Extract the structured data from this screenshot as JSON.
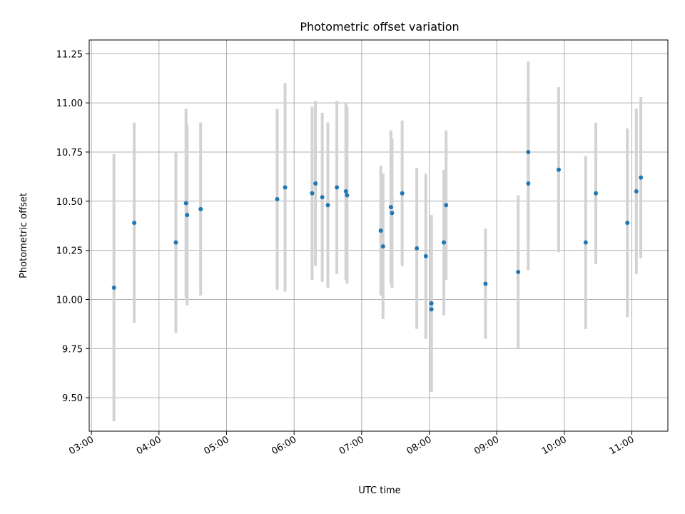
{
  "chart_data": {
    "type": "scatter",
    "title": "Photometric offset variation",
    "xlabel": "UTC time",
    "ylabel": "Photometric offset",
    "x_ticks": [
      "03:00",
      "04:00",
      "05:00",
      "06:00",
      "07:00",
      "08:00",
      "09:00",
      "10:00",
      "11:00"
    ],
    "y_ticks": [
      "9.50",
      "9.75",
      "10.00",
      "10.25",
      "10.50",
      "10.75",
      "11.00",
      "11.25"
    ],
    "xlim": [
      "02:58",
      "11:32"
    ],
    "ylim": [
      9.33,
      11.32
    ],
    "grid": true,
    "point_color": "#1f77b4",
    "errorbar_color": "#d3d3d3",
    "points": [
      {
        "x": "03:20",
        "y": 10.06,
        "err": 0.68
      },
      {
        "x": "03:38",
        "y": 10.39,
        "err": 0.51
      },
      {
        "x": "04:15",
        "y": 10.29,
        "err": 0.46
      },
      {
        "x": "04:24",
        "y": 10.49,
        "err": 0.48
      },
      {
        "x": "04:25",
        "y": 10.43,
        "err": 0.46
      },
      {
        "x": "04:37",
        "y": 10.46,
        "err": 0.44
      },
      {
        "x": "05:45",
        "y": 10.51,
        "err": 0.46
      },
      {
        "x": "05:52",
        "y": 10.57,
        "err": 0.53
      },
      {
        "x": "06:16",
        "y": 10.54,
        "err": 0.44
      },
      {
        "x": "06:19",
        "y": 10.59,
        "err": 0.42
      },
      {
        "x": "06:25",
        "y": 10.52,
        "err": 0.43
      },
      {
        "x": "06:30",
        "y": 10.48,
        "err": 0.42
      },
      {
        "x": "06:38",
        "y": 10.57,
        "err": 0.44
      },
      {
        "x": "06:46",
        "y": 10.55,
        "err": 0.45
      },
      {
        "x": "06:47",
        "y": 10.53,
        "err": 0.45
      },
      {
        "x": "07:17",
        "y": 10.35,
        "err": 0.33
      },
      {
        "x": "07:19",
        "y": 10.27,
        "err": 0.37
      },
      {
        "x": "07:26",
        "y": 10.47,
        "err": 0.39
      },
      {
        "x": "07:27",
        "y": 10.44,
        "err": 0.38
      },
      {
        "x": "07:36",
        "y": 10.54,
        "err": 0.37
      },
      {
        "x": "07:49",
        "y": 10.26,
        "err": 0.41
      },
      {
        "x": "07:57",
        "y": 10.22,
        "err": 0.42
      },
      {
        "x": "08:02",
        "y": 9.98,
        "err": 0.45
      },
      {
        "x": "08:02",
        "y": 9.95,
        "err": 0.42
      },
      {
        "x": "08:13",
        "y": 10.29,
        "err": 0.37
      },
      {
        "x": "08:15",
        "y": 10.48,
        "err": 0.38
      },
      {
        "x": "08:50",
        "y": 10.08,
        "err": 0.28
      },
      {
        "x": "09:19",
        "y": 10.14,
        "err": 0.39
      },
      {
        "x": "09:28",
        "y": 10.75,
        "err": 0.46
      },
      {
        "x": "09:28",
        "y": 10.59,
        "err": 0.44
      },
      {
        "x": "09:55",
        "y": 10.66,
        "err": 0.42
      },
      {
        "x": "10:19",
        "y": 10.29,
        "err": 0.44
      },
      {
        "x": "10:28",
        "y": 10.54,
        "err": 0.36
      },
      {
        "x": "10:56",
        "y": 10.39,
        "err": 0.48
      },
      {
        "x": "11:04",
        "y": 10.55,
        "err": 0.42
      },
      {
        "x": "11:08",
        "y": 10.62,
        "err": 0.41
      }
    ]
  }
}
